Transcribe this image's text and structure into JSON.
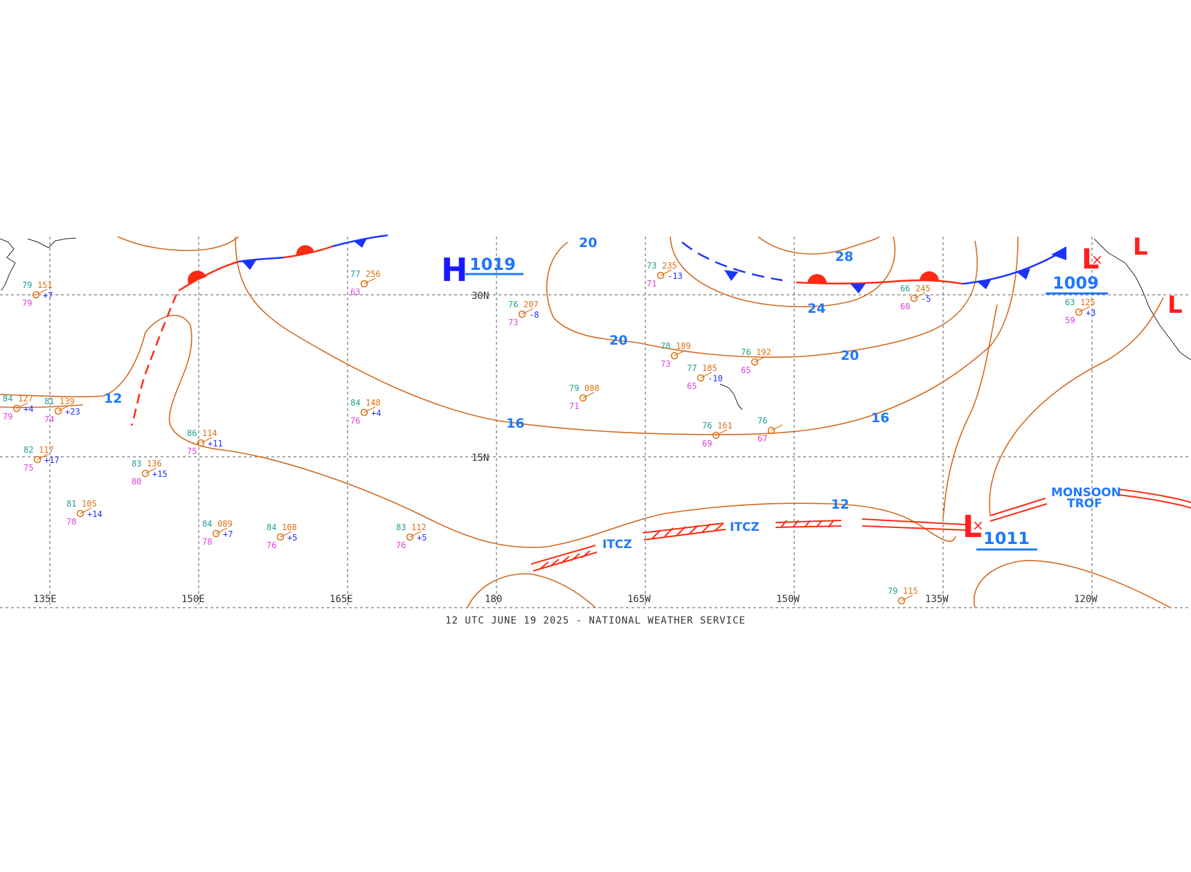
{
  "caption": "12 UTC JUNE 19 2025 - NATIONAL WEATHER SERVICE",
  "colors": {
    "isobar": "#d2691e",
    "isobar_label": "#1e78ff",
    "cold_front": "#1a33ff",
    "warm_front": "#ff2a12",
    "low": "#ff1f1f",
    "high": "#1a1aff",
    "grid": "#555555",
    "station_dew": "#20a090",
    "station_temp": "#e040e0",
    "station_press": "#e07010",
    "station_tend": "#2030ff"
  },
  "lon_labels": [
    "135E",
    "150E",
    "165E",
    "180",
    "165W",
    "150W",
    "135W",
    "120W"
  ],
  "lat_labels": [
    "30N",
    "15N"
  ],
  "isobar_labels": [
    "20",
    "28",
    "24",
    "20",
    "20",
    "16",
    "16",
    "12",
    "12"
  ],
  "pressure_centers": [
    {
      "kind": "H",
      "value": "1019",
      "icon": "high-pressure-icon"
    },
    {
      "kind": "L",
      "value": "1009",
      "icon": "low-pressure-icon"
    },
    {
      "kind": "L",
      "value": "1011",
      "icon": "low-pressure-icon"
    }
  ],
  "feature_labels": {
    "itcz": "ITCZ",
    "monsoon": "MONSOON",
    "trof": "TROF"
  },
  "stations": [
    {
      "dew": "84",
      "press": "127",
      "temp": "79",
      "tend": "+4"
    },
    {
      "dew": "81",
      "press": "139",
      "temp": "74",
      "tend": "+23"
    },
    {
      "dew": "82",
      "press": "117",
      "temp": "75",
      "tend": "+17"
    },
    {
      "dew": "81",
      "press": "105",
      "temp": "78",
      "tend": "+14"
    },
    {
      "dew": "79",
      "press": "151",
      "temp": "79",
      "tend": "+7"
    },
    {
      "dew": "83",
      "press": "136",
      "temp": "80",
      "tend": "+15"
    },
    {
      "dew": "86",
      "press": "114",
      "temp": "75",
      "tend": "+11"
    },
    {
      "dew": "84",
      "press": "089",
      "temp": "78",
      "tend": "+7"
    },
    {
      "dew": "84",
      "press": "108",
      "temp": "76",
      "tend": "+5"
    },
    {
      "dew": "84",
      "press": "148",
      "temp": "76",
      "tend": "+4"
    },
    {
      "dew": "77",
      "press": "256",
      "temp": "63",
      "tend": ""
    },
    {
      "dew": "83",
      "press": "112",
      "temp": "76",
      "tend": "+5"
    },
    {
      "dew": "76",
      "press": "207",
      "temp": "73",
      "tend": "-8"
    },
    {
      "dew": "79",
      "press": "088",
      "temp": "71",
      "tend": ""
    },
    {
      "dew": "73",
      "press": "235",
      "temp": "71",
      "tend": "-13"
    },
    {
      "dew": "78",
      "press": "189",
      "temp": "73",
      "tend": ""
    },
    {
      "dew": "77",
      "press": "185",
      "temp": "65",
      "tend": "-10"
    },
    {
      "dew": "76",
      "press": "192",
      "temp": "65",
      "tend": ""
    },
    {
      "dew": "76",
      "press": "161",
      "temp": "69",
      "tend": ""
    },
    {
      "dew": "76",
      "press": "",
      "temp": "67",
      "tend": ""
    },
    {
      "dew": "66",
      "press": "245",
      "temp": "60",
      "tend": "-5"
    },
    {
      "dew": "63",
      "press": "125",
      "temp": "59",
      "tend": "+3"
    },
    {
      "dew": "79",
      "press": "115",
      "temp": "",
      "tend": ""
    }
  ]
}
